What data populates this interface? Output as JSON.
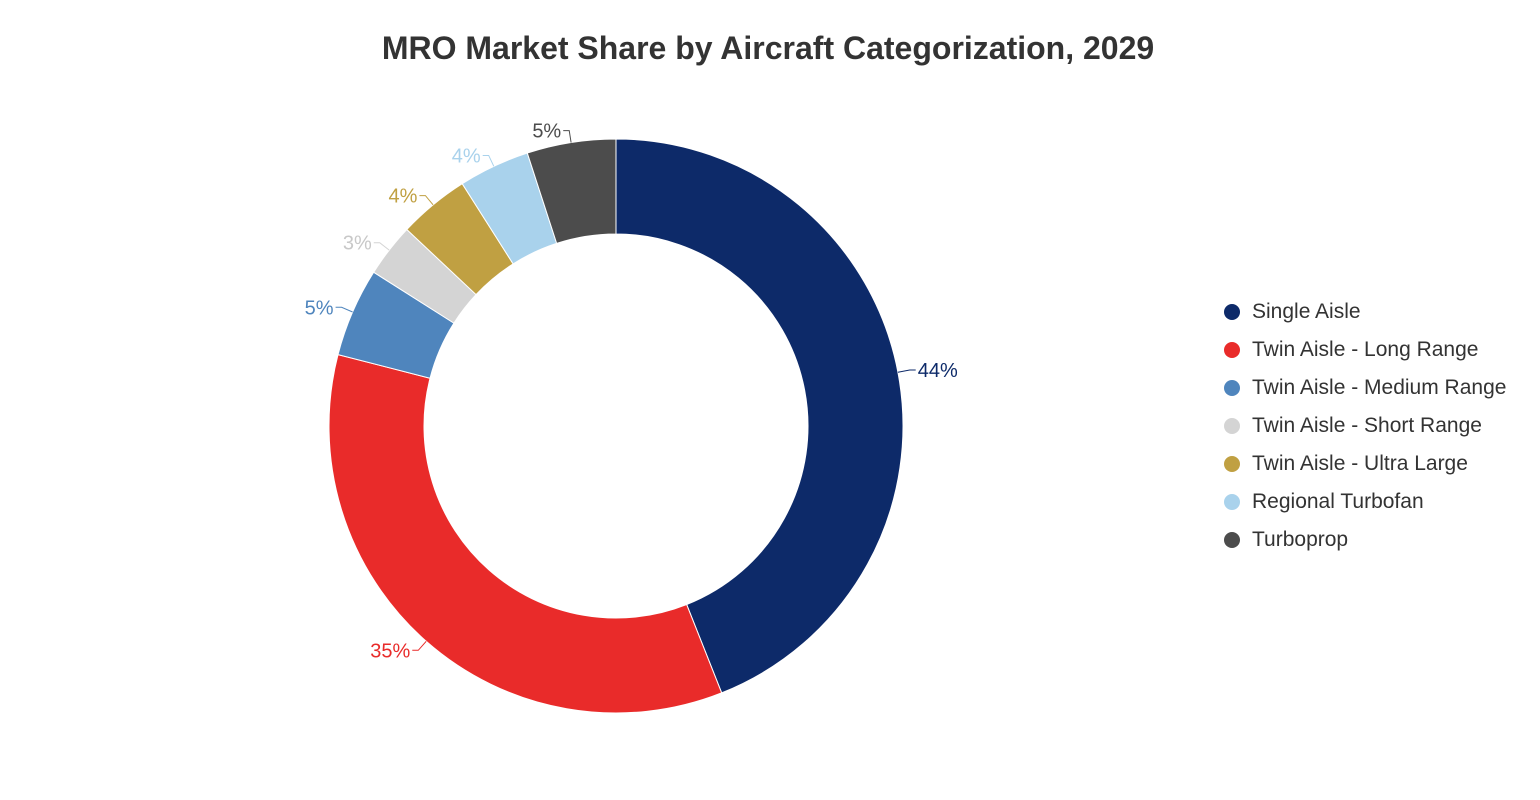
{
  "chart_data": {
    "type": "pie",
    "variant": "donut",
    "title": "MRO Market Share by Aircraft Categorization, 2029",
    "unit": "%",
    "legend_position": "right",
    "slices": [
      {
        "name": "Single Aisle",
        "value": 44,
        "label": "44%",
        "color": "#0d2a69"
      },
      {
        "name": "Twin Aisle - Long Range",
        "value": 35,
        "label": "35%",
        "color": "#e92b2a"
      },
      {
        "name": "Twin Aisle - Medium Range",
        "value": 5,
        "label": "5%",
        "color": "#4f85bd"
      },
      {
        "name": "Twin Aisle - Short Range",
        "value": 3,
        "label": "3%",
        "color": "#d4d4d4"
      },
      {
        "name": "Twin Aisle - Ultra Large",
        "value": 4,
        "label": "4%",
        "color": "#c0a042"
      },
      {
        "name": "Regional Turbofan",
        "value": 4,
        "label": "4%",
        "color": "#a9d2ec"
      },
      {
        "name": "Turboprop",
        "value": 5,
        "label": "5%",
        "color": "#4c4c4c"
      }
    ]
  }
}
